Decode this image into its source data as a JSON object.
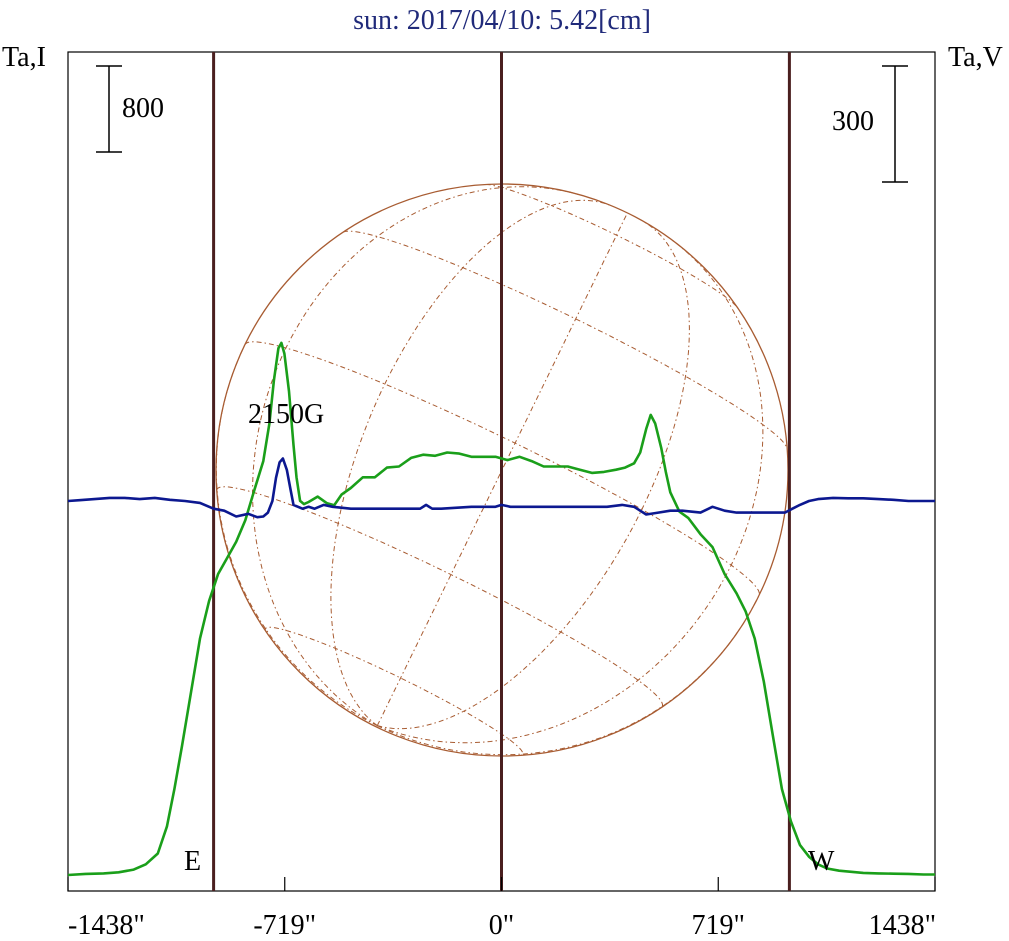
{
  "chart_data": {
    "type": "line",
    "title": "sun: 2017/04/10: 5.42[cm]",
    "left_axis_label": "Ta,I",
    "right_axis_label": "Ta,V",
    "left_scale_bar": "800",
    "right_scale_bar": "300",
    "x_ticks": [
      {
        "value": -1438,
        "label": "-1438\""
      },
      {
        "value": -719,
        "label": "-719\""
      },
      {
        "value": 0,
        "label": "0\""
      },
      {
        "value": 719,
        "label": "719\""
      },
      {
        "value": 1438,
        "label": "1438\""
      }
    ],
    "xlim": [
      -1438,
      1438
    ],
    "limb_lines": [
      -955,
      0,
      955
    ],
    "limb_labels": {
      "east": "E",
      "west": "W"
    },
    "annotation": "2150G",
    "grid": false,
    "colors": {
      "stokes_I": "#1a9f1a",
      "stokes_V": "#0c1890",
      "limb_line": "#4a1f1f",
      "disk": "#a85c32",
      "title": "#202a7a"
    },
    "series": [
      {
        "name": "",
        "key": "I",
        "x": [
          -1438,
          -1380,
          -1320,
          -1270,
          -1220,
          -1180,
          -1140,
          -1110,
          -1085,
          -1060,
          -1030,
          -1000,
          -970,
          -940,
          -910,
          -880,
          -850,
          -820,
          -790,
          -770,
          -755,
          -740,
          -730,
          -720,
          -705,
          -690,
          -680,
          -668,
          -655,
          -640,
          -610,
          -580,
          -555,
          -530,
          -500,
          -460,
          -420,
          -380,
          -340,
          -300,
          -260,
          -220,
          -180,
          -140,
          -100,
          -60,
          -20,
          20,
          60,
          100,
          140,
          180,
          220,
          260,
          300,
          340,
          380,
          410,
          440,
          460,
          480,
          495,
          510,
          530,
          545,
          560,
          590,
          620,
          660,
          700,
          740,
          780,
          810,
          840,
          870,
          900,
          930,
          960,
          990,
          1020,
          1050,
          1080,
          1120,
          1160,
          1200,
          1250,
          1300,
          1350,
          1400,
          1438
        ],
        "values": [
          0,
          10,
          15,
          25,
          50,
          100,
          200,
          450,
          800,
          1200,
          1700,
          2200,
          2550,
          2800,
          2950,
          3100,
          3300,
          3580,
          3850,
          4200,
          4600,
          4900,
          4950,
          4850,
          4500,
          4000,
          3700,
          3480,
          3450,
          3470,
          3520,
          3460,
          3440,
          3540,
          3600,
          3700,
          3700,
          3790,
          3800,
          3880,
          3910,
          3900,
          3930,
          3920,
          3890,
          3890,
          3890,
          3860,
          3890,
          3850,
          3800,
          3800,
          3800,
          3770,
          3740,
          3750,
          3770,
          3790,
          3830,
          3930,
          4150,
          4280,
          4200,
          3970,
          3750,
          3560,
          3380,
          3320,
          3170,
          3050,
          2800,
          2620,
          2450,
          2200,
          1800,
          1300,
          800,
          500,
          280,
          170,
          100,
          60,
          40,
          30,
          20,
          15,
          12,
          10,
          5,
          5
        ],
        "unit_scale": 800
      },
      {
        "name": "",
        "key": "V",
        "x": [
          -1438,
          -1400,
          -1350,
          -1300,
          -1250,
          -1200,
          -1150,
          -1100,
          -1050,
          -1000,
          -955,
          -920,
          -880,
          -840,
          -810,
          -790,
          -775,
          -760,
          -748,
          -736,
          -725,
          -712,
          -700,
          -690,
          -660,
          -640,
          -620,
          -590,
          -560,
          -500,
          -450,
          -400,
          -330,
          -270,
          -250,
          -230,
          -200,
          -100,
          -60,
          -20,
          0,
          30,
          80,
          150,
          200,
          250,
          300,
          350,
          400,
          440,
          460,
          480,
          520,
          560,
          600,
          660,
          700,
          740,
          780,
          800,
          820,
          900,
          940,
          965,
          990,
          1020,
          1050,
          1100,
          1150,
          1200,
          1250,
          1300,
          1350,
          1400,
          1438
        ],
        "values": [
          0,
          2,
          5,
          8,
          8,
          5,
          8,
          3,
          0,
          -5,
          -20,
          -25,
          -40,
          -33,
          -42,
          -40,
          -30,
          0,
          60,
          100,
          110,
          80,
          30,
          -10,
          -20,
          -15,
          -20,
          -10,
          -15,
          -20,
          -20,
          -20,
          -20,
          -20,
          -10,
          -20,
          -20,
          -15,
          -15,
          -15,
          -10,
          -15,
          -15,
          -15,
          -15,
          -15,
          -15,
          -15,
          -10,
          -15,
          -25,
          -35,
          -30,
          -25,
          -25,
          -30,
          -15,
          -25,
          -30,
          -30,
          -30,
          -30,
          -30,
          -20,
          -10,
          0,
          5,
          8,
          7,
          7,
          5,
          3,
          0,
          0,
          0
        ],
        "unit_scale": 300
      }
    ]
  }
}
